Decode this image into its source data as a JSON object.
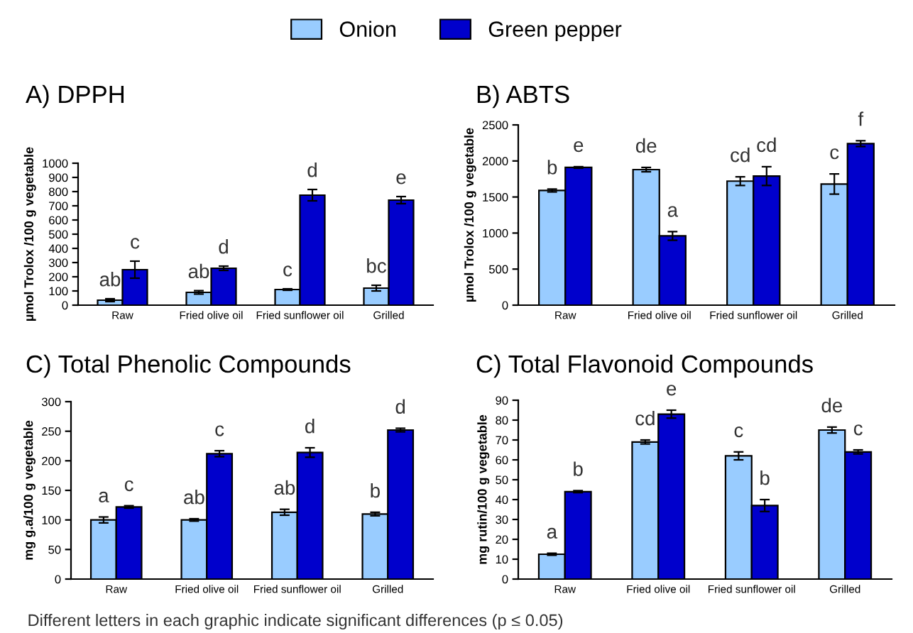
{
  "chart_data": [
    {
      "type": "bar",
      "title": "A) DPPH",
      "ylabel": "µmol Trolox /100 g vegetable",
      "categories": [
        "Raw",
        "Fried olive oil",
        "Fried sunflower oil",
        "Grilled"
      ],
      "ylim": [
        0,
        1000
      ],
      "yticks": [
        0,
        100,
        200,
        300,
        400,
        500,
        600,
        700,
        800,
        900,
        1000
      ],
      "grid": false,
      "legend": "top",
      "annotations": [
        "Different letters in each graphic indicate significant differences (p ≤ 0.05)"
      ],
      "series": [
        {
          "name": "Onion",
          "color": "#99ccff",
          "values": [
            35,
            90,
            110,
            120
          ],
          "errors": [
            10,
            12,
            5,
            20
          ],
          "value_labels": [
            "ab",
            "ab",
            "c",
            "bc"
          ]
        },
        {
          "name": "Green pepper",
          "color": "#0000cc",
          "values": [
            250,
            260,
            775,
            740
          ],
          "errors": [
            60,
            15,
            40,
            25
          ],
          "value_labels": [
            "c",
            "d",
            "d",
            "e"
          ]
        }
      ]
    },
    {
      "type": "bar",
      "title": "B) ABTS",
      "ylabel": "µmol Trolox /100 g vegetable",
      "categories": [
        "Raw",
        "Fried olive oil",
        "Fried sunflower oil",
        "Grilled"
      ],
      "ylim": [
        0,
        2500
      ],
      "yticks": [
        0,
        500,
        1000,
        1500,
        2000,
        2500
      ],
      "grid": false,
      "series": [
        {
          "color": "#99ccff",
          "values": [
            1590,
            1880,
            1720,
            1680
          ],
          "errors": [
            20,
            30,
            60,
            140
          ],
          "value_labels": [
            "b",
            "de",
            "cd",
            "c"
          ]
        },
        {
          "color": "#0000cc",
          "values": [
            1910,
            960,
            1790,
            2240
          ],
          "errors": [
            10,
            60,
            130,
            40
          ],
          "value_labels": [
            "e",
            "a",
            "cd",
            "f"
          ]
        }
      ]
    },
    {
      "type": "bar",
      "title": "C) Total Phenolic Compounds",
      "ylabel": "mg g.a/100 g vegetable",
      "categories": [
        "Raw",
        "Fried olive oil",
        "Fried sunflower oil",
        "Grilled"
      ],
      "ylim": [
        0,
        300
      ],
      "yticks": [
        0,
        50,
        100,
        150,
        200,
        250,
        300
      ],
      "grid": false,
      "series": [
        {
          "color": "#99ccff",
          "values": [
            100,
            100,
            113,
            110
          ],
          "errors": [
            5,
            2,
            5,
            3
          ],
          "value_labels": [
            "a",
            "ab",
            "ab",
            "b"
          ]
        },
        {
          "color": "#0000cc",
          "values": [
            122,
            212,
            214,
            252
          ],
          "errors": [
            2,
            5,
            8,
            3
          ],
          "value_labels": [
            "c",
            "c",
            "d",
            "d"
          ]
        }
      ]
    },
    {
      "type": "bar",
      "title": "C) Total Flavonoid Compounds",
      "ylabel": "mg rutin/100 g vegetable",
      "categories": [
        "Raw",
        "Fried olive oil",
        "Fried sunflower oil",
        "Grilled"
      ],
      "ylim": [
        0,
        90
      ],
      "yticks": [
        0,
        10,
        20,
        30,
        40,
        50,
        60,
        70,
        80,
        90
      ],
      "grid": false,
      "series": [
        {
          "color": "#99ccff",
          "values": [
            12.5,
            69,
            62,
            75
          ],
          "errors": [
            0.5,
            1,
            2,
            1.5
          ],
          "value_labels": [
            "a",
            "cd",
            "c",
            "de"
          ]
        },
        {
          "color": "#0000cc",
          "values": [
            44,
            83,
            37,
            64
          ],
          "errors": [
            0.5,
            2,
            3,
            1
          ],
          "value_labels": [
            "b",
            "e",
            "b",
            "c"
          ]
        }
      ]
    }
  ]
}
